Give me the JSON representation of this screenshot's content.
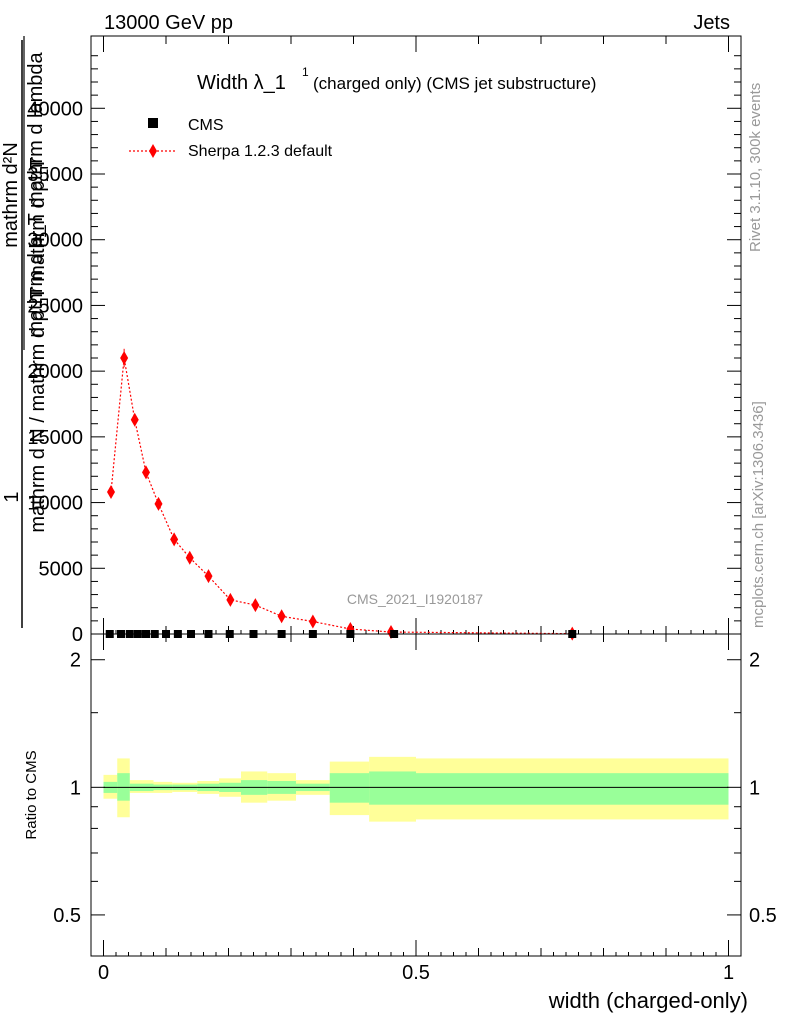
{
  "header": {
    "energy_label": "13000 GeV pp",
    "process_label": "Jets"
  },
  "side_labels": {
    "rivet": "Rivet 3.1.10,  300k events",
    "mcplots": "mcplots.cern.ch [arXiv:1306.3436]"
  },
  "chart_data": [
    {
      "type": "scatter",
      "title_main": "Width λ_1",
      "title_sup": "1",
      "title_rest": "(charged only) (CMS jet substructure)",
      "watermark": "CMS_2021_I1920187",
      "ylabel_lines": [
        "1",
        "mathrm d N / mathrm d p_T mathrm d p_T",
        "mathrm d²N",
        "mathrm d p_T mathrm d lambda"
      ],
      "xlim": [
        -0.02,
        1.02
      ],
      "ylim": [
        0,
        45500
      ],
      "y_ticks": [
        0,
        5000,
        10000,
        15000,
        20000,
        25000,
        30000,
        35000,
        40000
      ],
      "y_tick_labels": [
        "0",
        "5000",
        "10000",
        "15000",
        "20000",
        "25000",
        "30000",
        "35000",
        "40000"
      ],
      "legend_position": "top-left",
      "series": [
        {
          "name": "CMS",
          "color": "#000000",
          "marker": "square",
          "x": [
            0.01,
            0.028,
            0.042,
            0.055,
            0.068,
            0.082,
            0.1,
            0.119,
            0.14,
            0.168,
            0.202,
            0.24,
            0.285,
            0.335,
            0.395,
            0.465,
            0.75
          ],
          "y": [
            0,
            0,
            0,
            0,
            0,
            0,
            0,
            0,
            0,
            0,
            0,
            0,
            0,
            0,
            0,
            0,
            0
          ]
        },
        {
          "name": "Sherpa 1.2.3 default",
          "color": "#ff0000",
          "marker": "diamond",
          "x": [
            0.012,
            0.033,
            0.05,
            0.068,
            0.088,
            0.113,
            0.138,
            0.168,
            0.203,
            0.243,
            0.285,
            0.335,
            0.395,
            0.46,
            0.75
          ],
          "y": [
            10800,
            21000,
            16300,
            12300,
            9900,
            7200,
            5800,
            4400,
            2600,
            2200,
            1350,
            950,
            380,
            150,
            25
          ],
          "yerr": [
            0,
            700,
            350,
            250,
            200,
            150,
            120,
            100,
            80,
            70,
            50,
            40,
            20,
            10,
            5
          ]
        }
      ]
    },
    {
      "type": "band",
      "ylabel": "Ratio to CMS",
      "xlabel": "width (charged-only)",
      "xlim": [
        -0.02,
        1.02
      ],
      "x_ticks": [
        0,
        0.5,
        1
      ],
      "x_tick_labels": [
        "0",
        "0.5",
        "1"
      ],
      "y_scale": "log",
      "ylim": [
        0.4,
        2.3
      ],
      "y_ticks": [
        0.5,
        1,
        2
      ],
      "y_tick_labels": [
        "0.5",
        "1",
        "2"
      ],
      "reference": 1,
      "bins": [
        {
          "x0": 0.0,
          "x1": 0.022,
          "y_in": [
            0.97,
            1.03
          ],
          "y_out": [
            0.94,
            1.07
          ]
        },
        {
          "x0": 0.022,
          "x1": 0.042,
          "y_in": [
            0.93,
            1.08
          ],
          "y_out": [
            0.85,
            1.17
          ]
        },
        {
          "x0": 0.042,
          "x1": 0.08,
          "y_in": [
            0.98,
            1.02
          ],
          "y_out": [
            0.97,
            1.04
          ]
        },
        {
          "x0": 0.08,
          "x1": 0.11,
          "y_in": [
            0.985,
            1.015
          ],
          "y_out": [
            0.97,
            1.03
          ]
        },
        {
          "x0": 0.11,
          "x1": 0.15,
          "y_in": [
            0.985,
            1.015
          ],
          "y_out": [
            0.975,
            1.025
          ]
        },
        {
          "x0": 0.15,
          "x1": 0.185,
          "y_in": [
            0.98,
            1.02
          ],
          "y_out": [
            0.965,
            1.035
          ]
        },
        {
          "x0": 0.185,
          "x1": 0.22,
          "y_in": [
            0.975,
            1.025
          ],
          "y_out": [
            0.95,
            1.05
          ]
        },
        {
          "x0": 0.22,
          "x1": 0.262,
          "y_in": [
            0.96,
            1.04
          ],
          "y_out": [
            0.92,
            1.09
          ]
        },
        {
          "x0": 0.262,
          "x1": 0.308,
          "y_in": [
            0.965,
            1.035
          ],
          "y_out": [
            0.93,
            1.08
          ]
        },
        {
          "x0": 0.308,
          "x1": 0.362,
          "y_in": [
            0.98,
            1.02
          ],
          "y_out": [
            0.96,
            1.04
          ]
        },
        {
          "x0": 0.362,
          "x1": 0.425,
          "y_in": [
            0.92,
            1.08
          ],
          "y_out": [
            0.86,
            1.15
          ]
        },
        {
          "x0": 0.425,
          "x1": 0.5,
          "y_in": [
            0.91,
            1.09
          ],
          "y_out": [
            0.83,
            1.18
          ]
        },
        {
          "x0": 0.5,
          "x1": 1.0,
          "y_in": [
            0.91,
            1.08
          ],
          "y_out": [
            0.84,
            1.17
          ]
        }
      ]
    }
  ],
  "colors": {
    "band_inner": "#99ff99",
    "band_outer": "#ffff99",
    "reference_line": "#000000",
    "side_text": "#999999"
  }
}
